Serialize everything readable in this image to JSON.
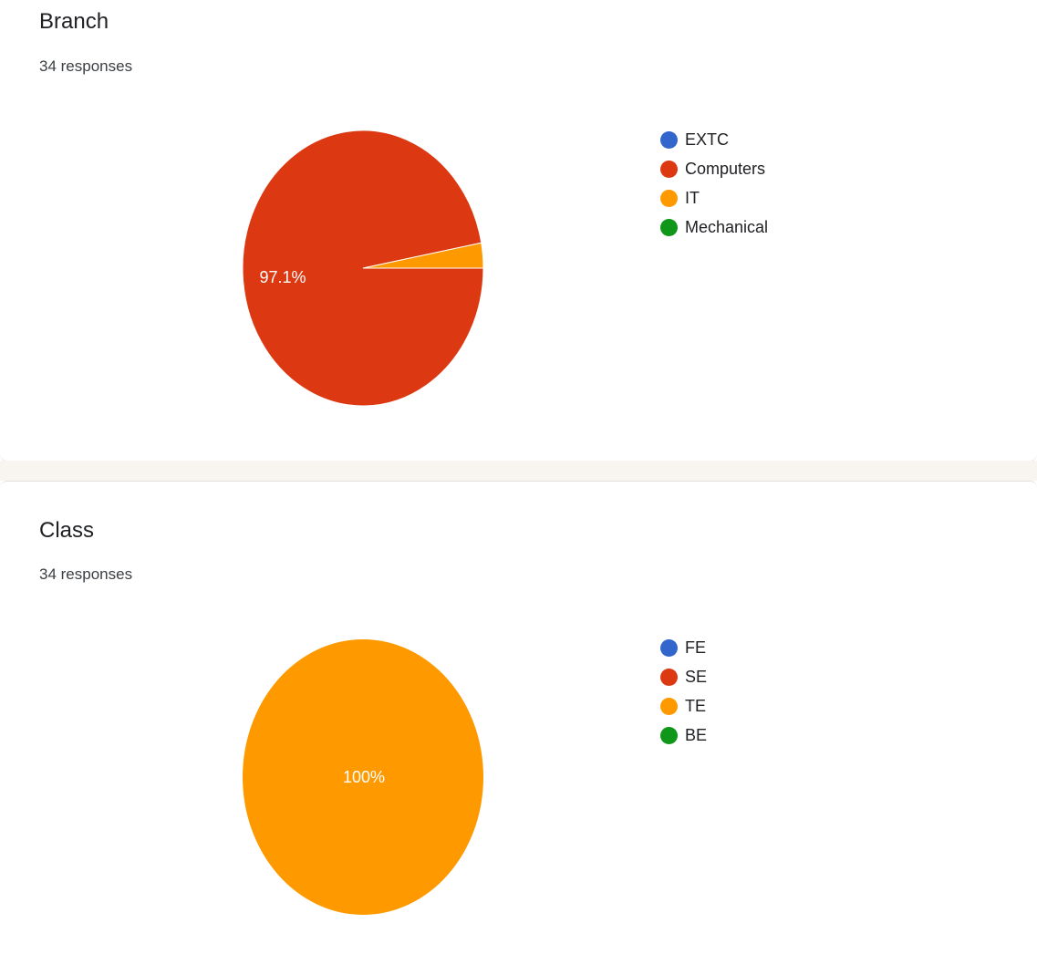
{
  "chart_data": [
    {
      "type": "pie",
      "title": "Branch",
      "subtitle": "34 responses",
      "categories": [
        "EXTC",
        "Computers",
        "IT",
        "Mechanical"
      ],
      "values": [
        0,
        33,
        1,
        0
      ],
      "colors": [
        "#3366cc",
        "#dc3912",
        "#ff9900",
        "#109618"
      ],
      "data_labels": [
        "",
        "97.1%",
        "",
        ""
      ],
      "legend_position": "right"
    },
    {
      "type": "pie",
      "title": "Class",
      "subtitle": "34 responses",
      "categories": [
        "FE",
        "SE",
        "TE",
        "BE"
      ],
      "values": [
        0,
        0,
        34,
        0
      ],
      "colors": [
        "#3366cc",
        "#dc3912",
        "#ff9900",
        "#109618"
      ],
      "data_labels": [
        "",
        "",
        "100%",
        ""
      ],
      "legend_position": "right"
    }
  ]
}
